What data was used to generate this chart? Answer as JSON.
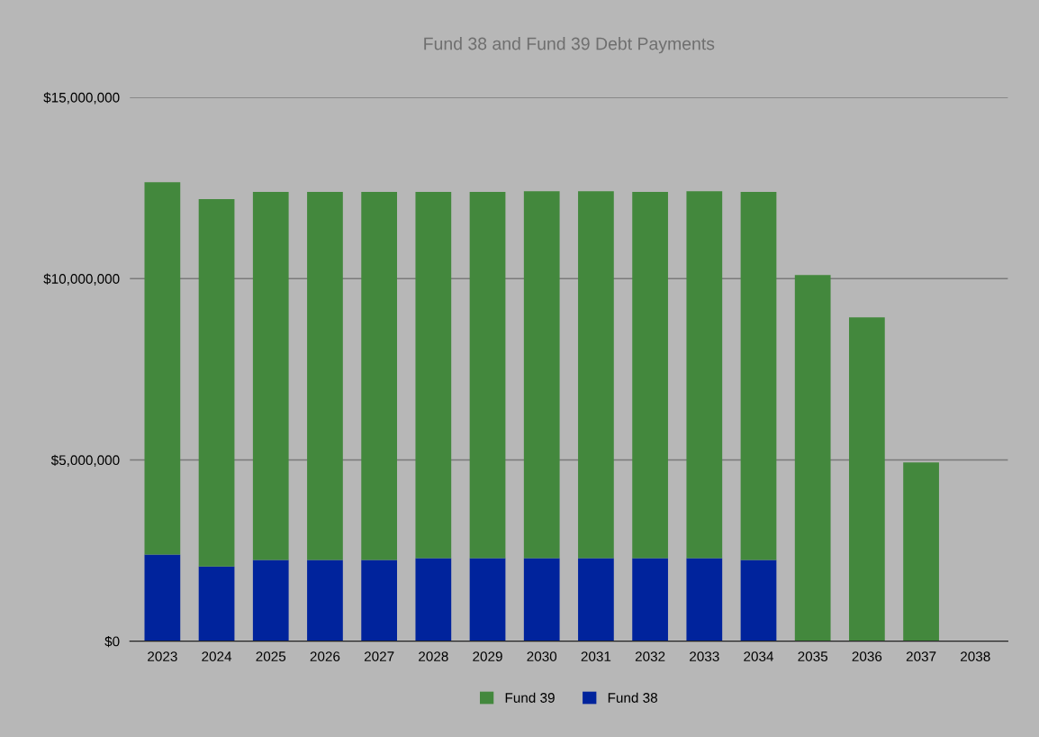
{
  "chart_data": {
    "type": "bar",
    "title": "Fund 38 and Fund 39 Debt Payments",
    "categories": [
      "2023",
      "2024",
      "2025",
      "2026",
      "2027",
      "2028",
      "2029",
      "2030",
      "2031",
      "2032",
      "2033",
      "2034",
      "2035",
      "2036",
      "2037",
      "2038"
    ],
    "stacked": true,
    "series": [
      {
        "name": "Fund 38",
        "color": "#00239c",
        "values": [
          2390000,
          2060000,
          2240000,
          2240000,
          2240000,
          2290000,
          2290000,
          2290000,
          2290000,
          2290000,
          2290000,
          2240000,
          0,
          0,
          0,
          0
        ]
      },
      {
        "name": "Fund 39",
        "color": "#43883d",
        "values": [
          10270000,
          10130000,
          10150000,
          10150000,
          10150000,
          10100000,
          10100000,
          10120000,
          10120000,
          10100000,
          10120000,
          10150000,
          10100000,
          8930000,
          4930000,
          0
        ]
      }
    ],
    "ylim": [
      0,
      15000000
    ],
    "yticks": [
      {
        "value": 0,
        "label": "$0"
      },
      {
        "value": 5000000,
        "label": "$5,000,000"
      },
      {
        "value": 10000000,
        "label": "$10,000,000"
      },
      {
        "value": 15000000,
        "label": "$15,000,000"
      }
    ],
    "grid": "y",
    "legend": "bottom"
  }
}
